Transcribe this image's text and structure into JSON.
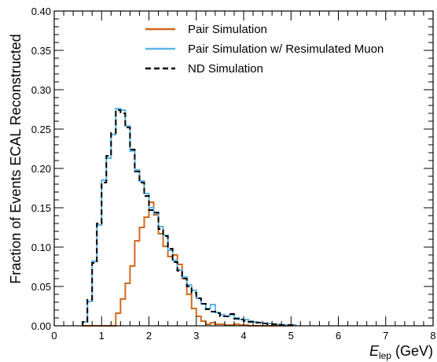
{
  "chart_data": {
    "type": "line",
    "drawstyle": "step",
    "title": "",
    "ylabel": "Fraction of Events ECAL Reconstructed",
    "xlabel_main": "E",
    "xlabel_sub": "lep",
    "xlabel_unit": " (GeV)",
    "xlim": [
      0,
      8
    ],
    "ylim": [
      0,
      0.4
    ],
    "xticks": [
      0,
      1,
      2,
      3,
      4,
      5,
      6,
      7,
      8
    ],
    "xtick_labels": [
      "0",
      "1",
      "2",
      "3",
      "4",
      "5",
      "6",
      "7",
      "8"
    ],
    "yticks": [
      0,
      0.05,
      0.1,
      0.15,
      0.2,
      0.25,
      0.3,
      0.35,
      0.4
    ],
    "ytick_labels": [
      "0.00",
      "0.05",
      "0.10",
      "0.15",
      "0.20",
      "0.25",
      "0.30",
      "0.35",
      "0.40"
    ],
    "grid": false,
    "legend_position": "top-center",
    "bin_edges": [
      0.6,
      0.7,
      0.8,
      0.9,
      1.0,
      1.1,
      1.2,
      1.3,
      1.4,
      1.5,
      1.6,
      1.7,
      1.8,
      1.9,
      2.0,
      2.1,
      2.2,
      2.3,
      2.4,
      2.5,
      2.6,
      2.7,
      2.8,
      2.9,
      3.0,
      3.1,
      3.2,
      3.3,
      3.4,
      3.5,
      3.6,
      3.7,
      3.8,
      3.9,
      4.0,
      4.1,
      4.2,
      4.3,
      4.4,
      4.5,
      4.6,
      4.7,
      4.8,
      4.9,
      5.0,
      5.1
    ],
    "series": [
      {
        "name": "Pair Simulation",
        "color": "#d2691e",
        "dash": "solid",
        "values": [
          0,
          0,
          0,
          0,
          0,
          0,
          0,
          0.016,
          0.034,
          0.054,
          0.076,
          0.108,
          0.125,
          0.138,
          0.157,
          0.141,
          0.117,
          0.101,
          0.088,
          0.09,
          0.078,
          0.06,
          0.04,
          0.022,
          0.012,
          0.006,
          0.002,
          0.004,
          0.002,
          0.002,
          0.001,
          0.001,
          0.002,
          0.001,
          0.001,
          0,
          0,
          0,
          0,
          0,
          0,
          0,
          0,
          0,
          0.001,
          0
        ]
      },
      {
        "name": "Pair Simulation w/ Resimulated Muon",
        "color": "#5db4e6",
        "dash": "solid",
        "values": [
          0.005,
          0.031,
          0.082,
          0.128,
          0.185,
          0.213,
          0.243,
          0.276,
          0.274,
          0.254,
          0.222,
          0.198,
          0.184,
          0.168,
          0.15,
          0.143,
          0.126,
          0.115,
          0.096,
          0.083,
          0.071,
          0.062,
          0.052,
          0.045,
          0.035,
          0.028,
          0.022,
          0.027,
          0.017,
          0.014,
          0.012,
          0.014,
          0.01,
          0.008,
          0.008,
          0.006,
          0.005,
          0.004,
          0.003,
          0.003,
          0.002,
          0.002,
          0.001,
          0.001,
          0.001,
          0
        ]
      },
      {
        "name": "ND Simulation",
        "color": "#000000",
        "dash": "dashed",
        "values": [
          0.005,
          0.033,
          0.08,
          0.13,
          0.182,
          0.216,
          0.245,
          0.274,
          0.27,
          0.252,
          0.224,
          0.196,
          0.182,
          0.165,
          0.147,
          0.144,
          0.123,
          0.114,
          0.098,
          0.081,
          0.07,
          0.06,
          0.05,
          0.042,
          0.035,
          0.028,
          0.021,
          0.018,
          0.016,
          0.012,
          0.012,
          0.015,
          0.009,
          0.008,
          0.006,
          0.005,
          0.004,
          0.004,
          0.003,
          0.002,
          0.002,
          0.001,
          0.001,
          0.001,
          0.001,
          0
        ]
      }
    ]
  }
}
